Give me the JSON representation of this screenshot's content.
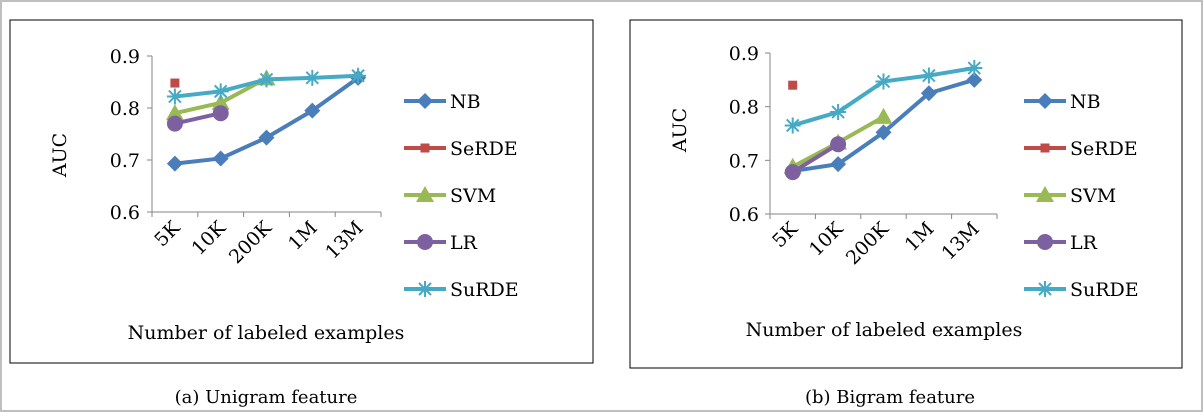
{
  "chart_data": [
    {
      "type": "line",
      "caption": "(a) Unigram feature",
      "xlabel": "Number of labeled examples",
      "ylabel": "AUC",
      "categories": [
        "5K",
        "10K",
        "200K",
        "1M",
        "13M"
      ],
      "ylim": [
        0.6,
        0.9
      ],
      "yticks": [
        "0.6",
        "0.7",
        "0.8",
        "0.9"
      ],
      "grid": false,
      "legend_position": "right",
      "series": [
        {
          "name": "NB",
          "color": "#4a7ebb",
          "marker": "diamond",
          "values": [
            0.693,
            0.703,
            0.743,
            0.795,
            0.858
          ]
        },
        {
          "name": "SeRDE",
          "color": "#be4b48",
          "marker": "square",
          "values": [
            0.848,
            null,
            null,
            null,
            null
          ]
        },
        {
          "name": "SVM",
          "color": "#98b954",
          "marker": "triangle",
          "values": [
            0.79,
            0.81,
            0.857,
            null,
            null
          ]
        },
        {
          "name": "LR",
          "color": "#7d60a0",
          "marker": "circle",
          "values": [
            0.77,
            0.79,
            null,
            null,
            null
          ]
        },
        {
          "name": "SuRDE",
          "color": "#46aac5",
          "marker": "star",
          "values": [
            0.822,
            0.832,
            0.855,
            0.858,
            0.862
          ]
        }
      ]
    },
    {
      "type": "line",
      "caption": "(b) Bigram feature",
      "xlabel": "Number of labeled examples",
      "ylabel": "AUC",
      "categories": [
        "5K",
        "10K",
        "200K",
        "1M",
        "13M"
      ],
      "ylim": [
        0.6,
        0.9
      ],
      "yticks": [
        "0.6",
        "0.7",
        "0.8",
        "0.9"
      ],
      "grid": false,
      "legend_position": "right",
      "series": [
        {
          "name": "NB",
          "color": "#4a7ebb",
          "marker": "diamond",
          "values": [
            0.68,
            0.693,
            0.752,
            0.825,
            0.85
          ]
        },
        {
          "name": "SeRDE",
          "color": "#be4b48",
          "marker": "square",
          "values": [
            0.84,
            null,
            null,
            null,
            null
          ]
        },
        {
          "name": "SVM",
          "color": "#98b954",
          "marker": "triangle",
          "values": [
            0.688,
            0.733,
            0.781,
            null,
            null
          ]
        },
        {
          "name": "LR",
          "color": "#7d60a0",
          "marker": "circle",
          "values": [
            0.678,
            0.73,
            null,
            null,
            null
          ]
        },
        {
          "name": "SuRDE",
          "color": "#46aac5",
          "marker": "star",
          "values": [
            0.765,
            0.79,
            0.847,
            0.858,
            0.872
          ]
        }
      ]
    }
  ]
}
